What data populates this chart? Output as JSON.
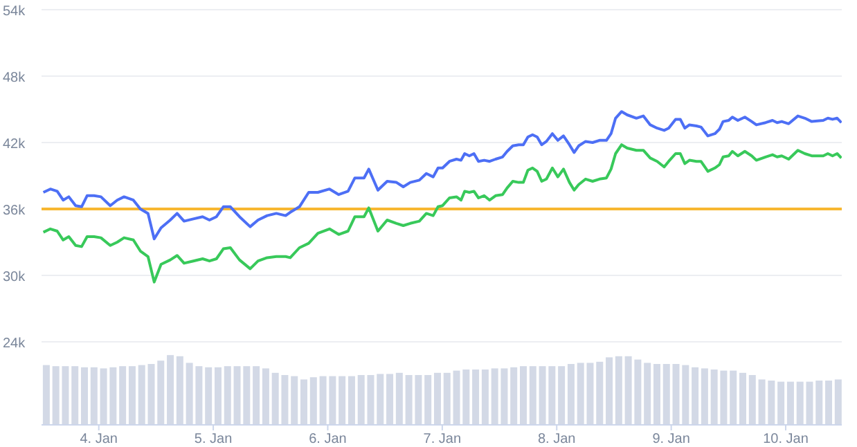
{
  "chart_data": {
    "type": "line",
    "x": [
      "--01-03T12:23",
      "--01-03T13:51",
      "--01-03T15:17",
      "--01-03T16:32",
      "--01-03T17:43",
      "--01-03T19:09",
      "--01-03T20:24",
      "--01-03T21:33",
      "--01-03T23:01",
      "--01-04T00:27",
      "--01-04T02:24",
      "--01-04T03:52",
      "--01-04T05:18",
      "--01-04T07:15",
      "--01-04T08:43",
      "--01-04T10:19",
      "--01-04T11:37",
      "--01-04T13:03",
      "--01-04T14:59",
      "--01-04T16:25",
      "--01-04T17:53",
      "--01-04T19:49",
      "--01-04T21:46",
      "--01-04T23:12",
      "--01-05T00:40",
      "--01-05T02:07",
      "--01-05T03:35",
      "--01-05T05:30",
      "--01-05T07:44",
      "--01-05T09:23",
      "--01-05T11:17",
      "--01-05T13:13",
      "--01-05T15:10",
      "--01-05T16:08",
      "--01-05T18:04",
      "--01-05T20:00",
      "--01-05T21:56",
      "--01-06T00:22",
      "--01-06T02:18",
      "--01-06T04:15",
      "--01-06T05:41",
      "--01-06T07:36",
      "--01-06T08:36",
      "--01-06T10:31",
      "--01-06T12:27",
      "--01-06T14:24",
      "--01-06T15:50",
      "--01-06T17:18",
      "--01-06T19:12",
      "--01-06T20:40",
      "--01-06T22:06",
      "--01-06T23:07",
      "--01-07T00:04",
      "--01-07T01:31",
      "--01-07T02:59",
      "--01-07T03:56",
      "--01-07T04:42",
      "--01-07T05:41",
      "--01-07T06:39",
      "--01-07T07:36",
      "--01-07T08:47",
      "--01-07T09:56",
      "--01-07T11:11",
      "--01-07T12:39",
      "--01-07T13:36",
      "--01-07T14:47",
      "--01-07T16:02",
      "--01-07T17:00",
      "--01-07T17:57",
      "--01-07T18:56",
      "--01-07T19:54",
      "--01-07T20:51",
      "--01-07T21:50",
      "--01-07T23:05",
      "--01-08T00:14",
      "--01-08T01:25",
      "--01-08T02:40",
      "--01-08T03:39",
      "--01-08T04:36",
      "--01-08T06:03",
      "--01-08T07:31",
      "--01-08T08:57",
      "--01-08T10:25",
      "--01-08T11:23",
      "--01-08T12:20",
      "--01-08T13:36",
      "--01-08T14:46",
      "--01-08T16:42",
      "--01-08T18:09",
      "--01-08T19:36",
      "--01-08T21:03",
      "--01-08T22:31",
      "--01-08T23:28",
      "--01-09T00:55",
      "--01-09T01:54",
      "--01-09T02:51",
      "--01-09T03:49",
      "--01-09T05:17",
      "--01-09T06:14",
      "--01-09T07:41",
      "--01-09T09:09",
      "--01-09T10:06",
      "--01-09T10:52",
      "--01-09T12:03",
      "--01-09T12:49",
      "--01-09T13:58",
      "--01-09T15:26",
      "--01-09T16:52",
      "--01-09T17:51",
      "--01-09T19:47",
      "--01-09T21:14",
      "--01-09T22:12",
      "--01-09T23:10",
      "--01-10T00:37",
      "--01-10T02:33",
      "--01-10T04:00",
      "--01-10T05:27",
      "--01-10T07:52",
      "--01-10T08:50",
      "--01-10T09:49",
      "--01-10T10:47",
      "--01-10T11:40"
    ],
    "series": [
      {
        "type": "bar",
        "color": "#d3d9e6",
        "x": [
          "--01-03T13:00",
          "--01-03T15:00",
          "--01-03T17:00",
          "--01-03T19:00",
          "--01-03T21:00",
          "--01-03T23:00",
          "--01-04T01:00",
          "--01-04T03:00",
          "--01-04T05:00",
          "--01-04T07:00",
          "--01-04T09:00",
          "--01-04T11:00",
          "--01-04T13:00",
          "--01-04T15:00",
          "--01-04T17:00",
          "--01-04T19:00",
          "--01-04T21:00",
          "--01-04T23:00",
          "--01-05T01:00",
          "--01-05T03:00",
          "--01-05T05:00",
          "--01-05T07:00",
          "--01-05T09:00",
          "--01-05T11:00",
          "--01-05T13:00",
          "--01-05T15:00",
          "--01-05T17:00",
          "--01-05T19:00",
          "--01-05T21:00",
          "--01-05T23:00",
          "--01-06T01:00",
          "--01-06T03:00",
          "--01-06T05:00",
          "--01-06T07:00",
          "--01-06T09:00",
          "--01-06T11:00",
          "--01-06T13:00",
          "--01-06T15:00",
          "--01-06T17:00",
          "--01-06T19:00",
          "--01-06T21:00",
          "--01-06T23:00",
          "--01-07T01:00",
          "--01-07T03:00",
          "--01-07T05:00",
          "--01-07T07:00",
          "--01-07T09:00",
          "--01-07T11:00",
          "--01-07T13:00",
          "--01-07T15:00",
          "--01-07T17:00",
          "--01-07T19:00",
          "--01-07T21:00",
          "--01-07T23:00",
          "--01-08T01:00",
          "--01-08T03:00",
          "--01-08T05:00",
          "--01-08T07:00",
          "--01-08T09:00",
          "--01-08T11:00",
          "--01-08T13:00",
          "--01-08T15:00",
          "--01-08T17:00",
          "--01-08T19:00",
          "--01-08T21:00",
          "--01-08T23:00",
          "--01-09T01:00",
          "--01-09T03:00",
          "--01-09T05:00",
          "--01-09T07:00",
          "--01-09T09:00",
          "--01-09T11:00",
          "--01-09T13:00",
          "--01-09T15:00",
          "--01-09T17:00",
          "--01-09T19:00",
          "--01-09T21:00",
          "--01-09T23:00",
          "--01-10T01:00",
          "--01-10T03:00",
          "--01-10T05:00",
          "--01-10T07:00",
          "--01-10T09:00",
          "--01-10T11:00"
        ],
        "values": [
          21900,
          21800,
          21800,
          21800,
          21700,
          21700,
          21600,
          21700,
          21800,
          21800,
          21900,
          22000,
          22300,
          22800,
          22700,
          22100,
          21800,
          21700,
          21700,
          21800,
          21800,
          21800,
          21800,
          21600,
          21200,
          21000,
          20900,
          20600,
          20800,
          20900,
          20900,
          20900,
          20900,
          21000,
          21000,
          21100,
          21100,
          21200,
          21000,
          21000,
          21000,
          21200,
          21200,
          21400,
          21500,
          21500,
          21500,
          21600,
          21600,
          21700,
          21800,
          21800,
          21800,
          21800,
          21800,
          22000,
          22100,
          22100,
          22200,
          22600,
          22700,
          22700,
          22400,
          22100,
          22000,
          22000,
          22000,
          21900,
          21700,
          21600,
          21500,
          21400,
          21400,
          21200,
          21000,
          20600,
          20500,
          20400,
          20400,
          20400,
          20400,
          20500,
          20500,
          20600
        ]
      },
      {
        "color": "#4d6ff5",
        "values": [
          37500,
          37800,
          37600,
          36800,
          37100,
          36300,
          36200,
          37200,
          37200,
          37100,
          36300,
          36800,
          37100,
          36800,
          36000,
          35600,
          33300,
          34300,
          35000,
          35600,
          34900,
          35100,
          35300,
          35000,
          35300,
          36200,
          36200,
          35300,
          34400,
          35000,
          35400,
          35600,
          35400,
          35700,
          36200,
          37500,
          37500,
          37800,
          37300,
          37600,
          38800,
          38800,
          39600,
          37700,
          38500,
          38400,
          38000,
          38400,
          38600,
          39200,
          38900,
          39700,
          39700,
          40300,
          40500,
          40400,
          41000,
          40800,
          41000,
          40300,
          40400,
          40300,
          40500,
          40700,
          41200,
          41700,
          41800,
          41800,
          42500,
          42700,
          42500,
          41800,
          42100,
          42800,
          42200,
          42600,
          41800,
          41100,
          41700,
          42100,
          42000,
          42200,
          42200,
          42800,
          44200,
          44800,
          44500,
          44200,
          44400,
          43600,
          43300,
          43100,
          43300,
          44100,
          44100,
          43300,
          43600,
          43500,
          43400,
          42600,
          42800,
          43200,
          43900,
          44000,
          44300,
          44000,
          44300,
          43900,
          43600,
          43800,
          44000,
          43800,
          43900,
          43700,
          44400,
          44200,
          43900,
          44000,
          44200,
          44100,
          44200,
          43800
        ]
      },
      {
        "color": "#38c95a",
        "values": [
          33900,
          34200,
          34000,
          33200,
          33500,
          32700,
          32600,
          33500,
          33500,
          33400,
          32700,
          33000,
          33400,
          33200,
          32200,
          31700,
          29400,
          31000,
          31400,
          31800,
          31100,
          31300,
          31500,
          31300,
          31500,
          32400,
          32500,
          31400,
          30600,
          31300,
          31600,
          31700,
          31700,
          31600,
          32500,
          32900,
          33800,
          34200,
          33700,
          34000,
          35300,
          35300,
          36100,
          34000,
          35000,
          34700,
          34500,
          34700,
          34900,
          35600,
          35400,
          36200,
          36300,
          37000,
          37100,
          36800,
          37600,
          37500,
          37600,
          37000,
          37200,
          36800,
          37200,
          37300,
          37900,
          38500,
          38400,
          38400,
          39500,
          39700,
          39400,
          38500,
          38700,
          39700,
          38900,
          39600,
          38400,
          37700,
          38200,
          38700,
          38500,
          38700,
          38800,
          39600,
          41000,
          41800,
          41500,
          41300,
          41300,
          40600,
          40300,
          39800,
          40300,
          41000,
          41000,
          40100,
          40400,
          40300,
          40300,
          39400,
          39700,
          40000,
          40700,
          40800,
          41200,
          40800,
          41200,
          40800,
          40400,
          40700,
          40900,
          40700,
          40800,
          40500,
          41300,
          41000,
          40800,
          40800,
          41000,
          40800,
          41000,
          40600
        ]
      }
    ],
    "xlim": [
      "--01-03T12:00",
      "--01-10T11:45"
    ],
    "xticks": [
      {
        "value": "--01-04",
        "label": "4. Jan"
      },
      {
        "value": "--01-05",
        "label": "5. Jan"
      },
      {
        "value": "--01-06",
        "label": "6. Jan"
      },
      {
        "value": "--01-07",
        "label": "7. Jan"
      },
      {
        "value": "--01-08",
        "label": "8. Jan"
      },
      {
        "value": "--01-09",
        "label": "9. Jan"
      },
      {
        "value": "--01-10",
        "label": "10. Jan"
      }
    ],
    "ylim": [
      16500,
      54000
    ],
    "yticks": [
      {
        "value": 24000,
        "label": "24k"
      },
      {
        "value": 30000,
        "label": "30k"
      },
      {
        "value": 36000,
        "label": "36k"
      },
      {
        "value": 42000,
        "label": "42k"
      },
      {
        "value": 48000,
        "label": "48k"
      },
      {
        "value": 54000,
        "label": "54k"
      }
    ],
    "ref_lines": [
      {
        "axis": "y",
        "value": 36000,
        "color": "#f7b731"
      }
    ],
    "grid": "y",
    "line_style": "solid"
  }
}
